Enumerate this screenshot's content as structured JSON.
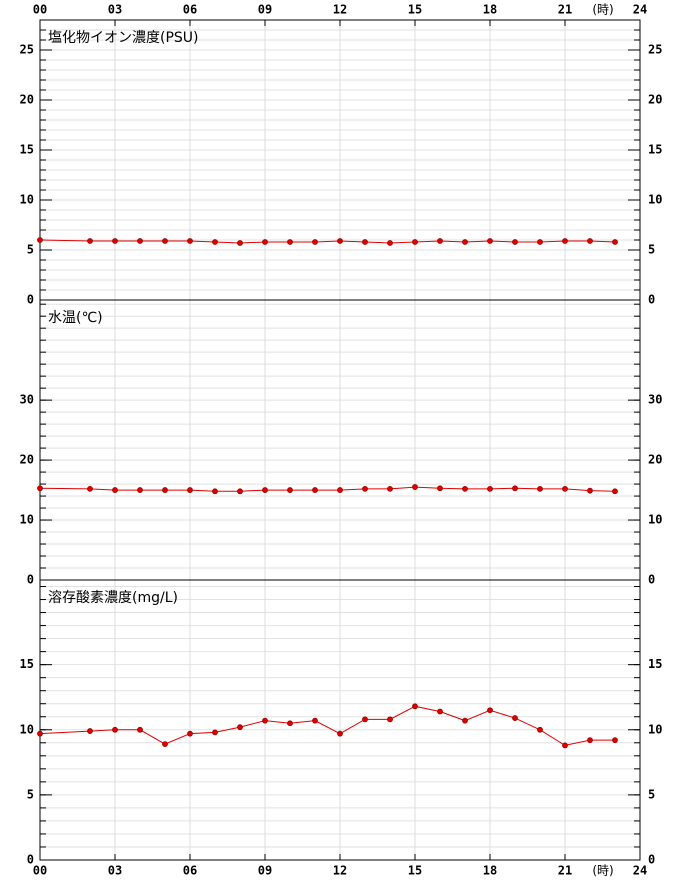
{
  "chart_data": [
    {
      "type": "line",
      "title": "塩化物イオン濃度(PSU)",
      "xaxis_position": "top",
      "xlabel": "(時)",
      "x": [
        0,
        2,
        3,
        4,
        5,
        6,
        7,
        8,
        9,
        10,
        11,
        12,
        13,
        14,
        15,
        16,
        17,
        18,
        19,
        20,
        21,
        22,
        23
      ],
      "values": [
        6.0,
        5.9,
        5.9,
        5.9,
        5.9,
        5.9,
        5.8,
        5.7,
        5.8,
        5.8,
        5.8,
        5.9,
        5.8,
        5.7,
        5.8,
        5.9,
        5.8,
        5.9,
        5.8,
        5.8,
        5.9,
        5.9,
        5.8
      ],
      "color": "#e00000",
      "xlim": [
        0,
        24
      ],
      "xticks": [
        {
          "value": 0,
          "label": "00"
        },
        {
          "value": 3,
          "label": "03"
        },
        {
          "value": 6,
          "label": "06"
        },
        {
          "value": 9,
          "label": "09"
        },
        12,
        15,
        18,
        21,
        24
      ],
      "ylim": [
        0,
        28
      ],
      "yticks": [
        0,
        5,
        10,
        15,
        20,
        25
      ],
      "minor_step": 1,
      "grid": true
    },
    {
      "type": "line",
      "title": "水温(℃)",
      "xaxis_position": "none",
      "x": [
        0,
        2,
        3,
        4,
        5,
        6,
        7,
        8,
        9,
        10,
        11,
        12,
        13,
        14,
        15,
        16,
        17,
        18,
        19,
        20,
        21,
        22,
        23
      ],
      "values": [
        15.3,
        15.2,
        15.0,
        15.0,
        15.0,
        15.0,
        14.8,
        14.8,
        15.0,
        15.0,
        15.0,
        15.0,
        15.2,
        15.2,
        15.5,
        15.3,
        15.2,
        15.2,
        15.3,
        15.2,
        15.2,
        14.9,
        14.8
      ],
      "color": "#e00000",
      "xlim": [
        0,
        24
      ],
      "xticks": [
        {
          "value": 0,
          "label": "00"
        },
        {
          "value": 3,
          "label": "03"
        },
        {
          "value": 6,
          "label": "06"
        },
        {
          "value": 9,
          "label": "09"
        },
        12,
        15,
        18,
        21,
        24
      ],
      "ylim": [
        0,
        46.7
      ],
      "yticks": [
        0,
        10,
        20,
        30
      ],
      "minor_step": 2,
      "grid": true
    },
    {
      "type": "line",
      "title": "溶存酸素濃度(mg/L)",
      "xaxis_position": "bottom",
      "xlabel": "(時)",
      "x": [
        0,
        2,
        3,
        4,
        5,
        6,
        7,
        8,
        9,
        10,
        11,
        12,
        13,
        14,
        15,
        16,
        17,
        18,
        19,
        20,
        21,
        22,
        23
      ],
      "values": [
        9.7,
        9.9,
        10.0,
        10.0,
        8.9,
        9.7,
        9.8,
        10.2,
        10.7,
        10.5,
        10.7,
        9.7,
        10.8,
        10.8,
        11.8,
        11.4,
        10.7,
        11.5,
        10.9,
        10.0,
        8.8,
        9.2,
        9.2
      ],
      "color": "#e00000",
      "xlim": [
        0,
        24
      ],
      "xticks": [
        {
          "value": 0,
          "label": "00"
        },
        {
          "value": 3,
          "label": "03"
        },
        {
          "value": 6,
          "label": "06"
        },
        {
          "value": 9,
          "label": "09"
        },
        12,
        15,
        18,
        21,
        24
      ],
      "ylim": [
        0,
        21.5
      ],
      "yticks": [
        0,
        5,
        10,
        15
      ],
      "minor_step": 1,
      "grid": true
    }
  ]
}
